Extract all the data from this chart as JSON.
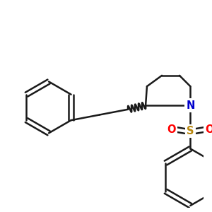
{
  "background_color": "#ffffff",
  "line_color": "#1a1a1a",
  "N_color": "#0000cc",
  "S_color": "#b8860b",
  "O_color": "#ff0000",
  "line_width": 1.8,
  "font_size_atom": 10.5,
  "figsize": [
    3.0,
    3.0
  ],
  "dpi": 100,
  "xlim": [
    0,
    300
  ],
  "ylim": [
    0,
    300
  ]
}
